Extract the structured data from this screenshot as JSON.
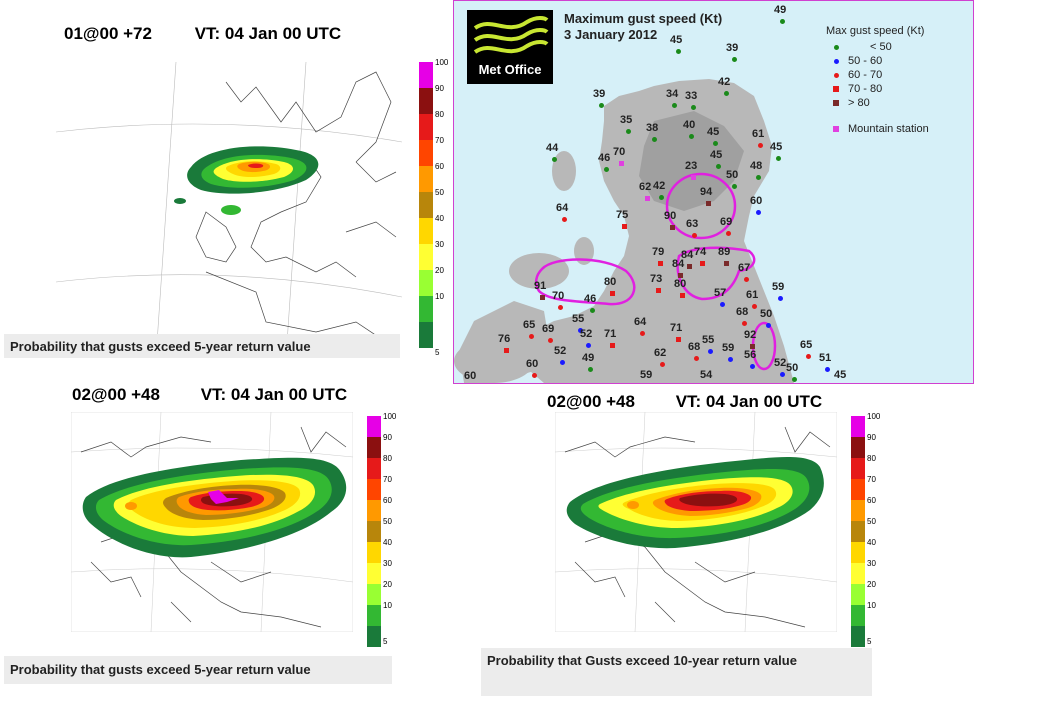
{
  "panels": [
    {
      "run": "01@00 +72",
      "valid_time": "VT: 04 Jan 00 UTC",
      "caption": "Probability that gusts exceed 5-year return value"
    },
    {
      "run": "02@00 +48",
      "valid_time": "VT: 04 Jan 00 UTC",
      "caption": "Probability that gusts exceed 5-year return value"
    },
    {
      "run": "02@00 +48",
      "valid_time": "VT: 04 Jan 00 UTC",
      "caption": "Probability that Gusts exceed 10-year return value"
    }
  ],
  "colorbar": {
    "levels": [
      "100",
      "90",
      "80",
      "70",
      "60",
      "50",
      "40",
      "30",
      "20",
      "10",
      "5"
    ],
    "colors": [
      "#e600e6",
      "#8b1010",
      "#e61a1a",
      "#ff4500",
      "#ff9900",
      "#b8860b",
      "#ffd700",
      "#ffff33",
      "#99ff33",
      "#33b833",
      "#1a7a3a"
    ]
  },
  "metoffice_map": {
    "brand": "Met Office",
    "title": "Maximum gust speed (Kt)",
    "date": "3 January 2012",
    "legend_title": "Max gust speed (Kt)",
    "legend": [
      {
        "label": "< 50",
        "color": "#1a8a1a",
        "marker": "dot"
      },
      {
        "label": "50 - 60",
        "color": "#1a1aff",
        "marker": "dot"
      },
      {
        "label": "60 - 70",
        "color": "#e61a1a",
        "marker": "dot"
      },
      {
        "label": "70 - 80",
        "color": "#e61a1a",
        "marker": "square"
      },
      {
        "label": "> 80",
        "color": "#7a2a2a",
        "marker": "square"
      },
      {
        "label": "Mountain station",
        "color": "#e040e0",
        "marker": "square"
      }
    ],
    "stations": [
      {
        "v": "49",
        "c": "#1a8a1a",
        "m": "dot"
      },
      {
        "v": "45",
        "c": "#1a8a1a",
        "m": "dot"
      },
      {
        "v": "39",
        "c": "#1a8a1a",
        "m": "dot"
      },
      {
        "v": "42",
        "c": "#1a8a1a",
        "m": "dot"
      },
      {
        "v": "39",
        "c": "#1a8a1a",
        "m": "dot"
      },
      {
        "v": "34",
        "c": "#1a8a1a",
        "m": "dot"
      },
      {
        "v": "33",
        "c": "#1a8a1a",
        "m": "dot"
      },
      {
        "v": "35",
        "c": "#1a8a1a",
        "m": "dot"
      },
      {
        "v": "38",
        "c": "#1a8a1a",
        "m": "dot"
      },
      {
        "v": "40",
        "c": "#1a8a1a",
        "m": "dot"
      },
      {
        "v": "45",
        "c": "#1a8a1a",
        "m": "dot"
      },
      {
        "v": "61",
        "c": "#e61a1a",
        "m": "dot"
      },
      {
        "v": "45",
        "c": "#1a8a1a",
        "m": "dot"
      },
      {
        "v": "44",
        "c": "#1a8a1a",
        "m": "dot"
      },
      {
        "v": "70",
        "c": "#e040e0",
        "m": "square"
      },
      {
        "v": "46",
        "c": "#1a8a1a",
        "m": "dot"
      },
      {
        "v": "23",
        "c": "#e040e0",
        "m": "square"
      },
      {
        "v": "45",
        "c": "#1a8a1a",
        "m": "dot"
      },
      {
        "v": "48",
        "c": "#1a8a1a",
        "m": "dot"
      },
      {
        "v": "50",
        "c": "#1a8a1a",
        "m": "dot"
      },
      {
        "v": "62",
        "c": "#e040e0",
        "m": "square"
      },
      {
        "v": "42",
        "c": "#1a8a1a",
        "m": "dot"
      },
      {
        "v": "94",
        "c": "#7a2a2a",
        "m": "square"
      },
      {
        "v": "60",
        "c": "#1a1aff",
        "m": "dot"
      },
      {
        "v": "64",
        "c": "#e61a1a",
        "m": "dot"
      },
      {
        "v": "75",
        "c": "#e61a1a",
        "m": "square"
      },
      {
        "v": "90",
        "c": "#7a2a2a",
        "m": "square"
      },
      {
        "v": "63",
        "c": "#e61a1a",
        "m": "dot"
      },
      {
        "v": "69",
        "c": "#e61a1a",
        "m": "dot"
      },
      {
        "v": "79",
        "c": "#e61a1a",
        "m": "square"
      },
      {
        "v": "84",
        "c": "#7a2a2a",
        "m": "square"
      },
      {
        "v": "74",
        "c": "#e61a1a",
        "m": "square"
      },
      {
        "v": "89",
        "c": "#7a2a2a",
        "m": "square"
      },
      {
        "v": "84",
        "c": "#7a2a2a",
        "m": "square"
      },
      {
        "v": "67",
        "c": "#e61a1a",
        "m": "dot"
      },
      {
        "v": "91",
        "c": "#7a2a2a",
        "m": "square"
      },
      {
        "v": "80",
        "c": "#e61a1a",
        "m": "square"
      },
      {
        "v": "73",
        "c": "#e61a1a",
        "m": "square"
      },
      {
        "v": "80",
        "c": "#e61a1a",
        "m": "square"
      },
      {
        "v": "59",
        "c": "#1a1aff",
        "m": "dot"
      },
      {
        "v": "70",
        "c": "#e61a1a",
        "m": "dot"
      },
      {
        "v": "46",
        "c": "#1a8a1a",
        "m": "dot"
      },
      {
        "v": "57",
        "c": "#1a1aff",
        "m": "dot"
      },
      {
        "v": "61",
        "c": "#e61a1a",
        "m": "dot"
      },
      {
        "v": "68",
        "c": "#e61a1a",
        "m": "dot"
      },
      {
        "v": "50",
        "c": "#1a1aff",
        "m": "dot"
      },
      {
        "v": "65",
        "c": "#e61a1a",
        "m": "dot"
      },
      {
        "v": "69",
        "c": "#e61a1a",
        "m": "dot"
      },
      {
        "v": "55",
        "c": "#1a1aff",
        "m": "dot"
      },
      {
        "v": "52",
        "c": "#1a1aff",
        "m": "dot"
      },
      {
        "v": "71",
        "c": "#e61a1a",
        "m": "square"
      },
      {
        "v": "64",
        "c": "#e61a1a",
        "m": "dot"
      },
      {
        "v": "71",
        "c": "#e61a1a",
        "m": "square"
      },
      {
        "v": "76",
        "c": "#e61a1a",
        "m": "square"
      },
      {
        "v": "52",
        "c": "#1a1aff",
        "m": "dot"
      },
      {
        "v": "49",
        "c": "#1a8a1a",
        "m": "dot"
      },
      {
        "v": "92",
        "c": "#7a2a2a",
        "m": "square"
      },
      {
        "v": "55",
        "c": "#1a1aff",
        "m": "dot"
      },
      {
        "v": "68",
        "c": "#e61a1a",
        "m": "dot"
      },
      {
        "v": "59",
        "c": "#1a1aff",
        "m": "dot"
      },
      {
        "v": "56",
        "c": "#1a1aff",
        "m": "dot"
      },
      {
        "v": "62",
        "c": "#e61a1a",
        "m": "dot"
      },
      {
        "v": "65",
        "c": "#e61a1a",
        "m": "dot"
      },
      {
        "v": "52",
        "c": "#1a1aff",
        "m": "dot"
      },
      {
        "v": "51",
        "c": "#1a1aff",
        "m": "dot"
      },
      {
        "v": "60",
        "c": "#e61a1a",
        "m": "dot"
      },
      {
        "v": "60",
        "c": "#e61a1a",
        "m": "dot"
      },
      {
        "v": "50",
        "c": "#1a8a1a",
        "m": "dot"
      },
      {
        "v": "59",
        "c": "#1a1aff",
        "m": "dot"
      },
      {
        "v": "54",
        "c": "#1a1aff",
        "m": "dot"
      },
      {
        "v": "45",
        "c": "#1a8a1a",
        "m": "dot"
      }
    ]
  }
}
